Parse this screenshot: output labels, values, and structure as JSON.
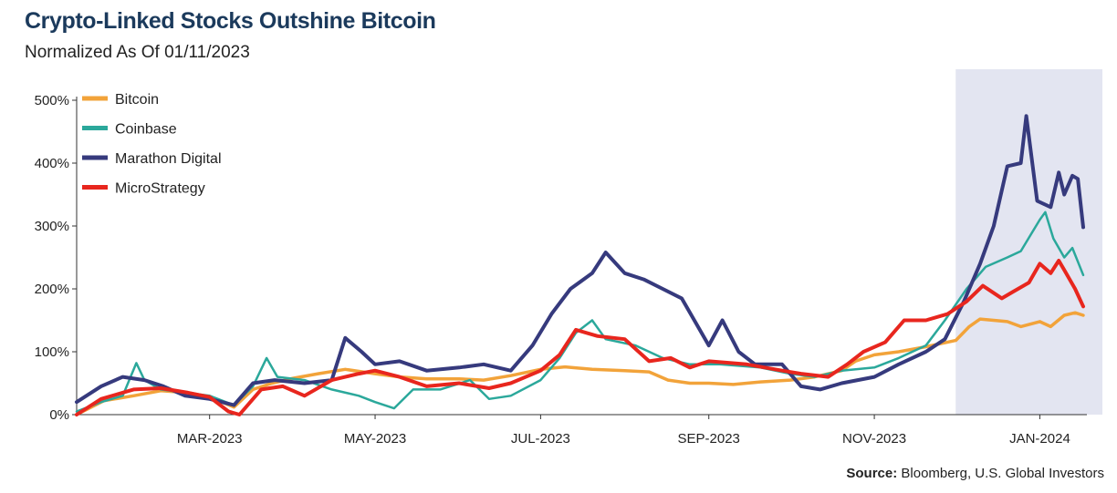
{
  "header": {
    "title": "Crypto-Linked Stocks Outshine Bitcoin",
    "subtitle": "Normalized As Of 01/11/2023"
  },
  "footer": {
    "source_label": "Source:",
    "source_text": " Bloomberg, U.S. Global Investors"
  },
  "chart_data": {
    "type": "line",
    "title": "Crypto-Linked Stocks Outshine Bitcoin",
    "subtitle": "Normalized As Of 01/11/2023",
    "x_tick_labels": [
      "MAR-2023",
      "MAY-2023",
      "JUL-2023",
      "SEP-2023",
      "NOV-2023",
      "JAN-2024"
    ],
    "x_tick_dates": [
      "2023-03-01",
      "2023-05-01",
      "2023-07-01",
      "2023-09-01",
      "2023-11-01",
      "2024-01-01"
    ],
    "x_range": [
      "2023-01-11",
      "2024-01-17"
    ],
    "y_tick_labels": [
      "0%",
      "100%",
      "200%",
      "300%",
      "400%",
      "500%"
    ],
    "y_ticks": [
      0,
      100,
      200,
      300,
      400,
      500
    ],
    "ylim": [
      0,
      500
    ],
    "y_unit": "%",
    "grid": false,
    "legend_position": "top-left",
    "highlight_region": [
      "2023-12-01",
      "2024-01-17"
    ],
    "highlight_color": "#e3e5f1",
    "series": [
      {
        "name": "Bitcoin",
        "color": "#f2a33a",
        "points": [
          [
            "2023-01-11",
            0
          ],
          [
            "2023-01-21",
            22
          ],
          [
            "2023-02-01",
            30
          ],
          [
            "2023-02-11",
            38
          ],
          [
            "2023-02-21",
            35
          ],
          [
            "2023-03-01",
            28
          ],
          [
            "2023-03-10",
            12
          ],
          [
            "2023-03-17",
            40
          ],
          [
            "2023-03-24",
            50
          ],
          [
            "2023-04-01",
            58
          ],
          [
            "2023-04-10",
            65
          ],
          [
            "2023-04-20",
            72
          ],
          [
            "2023-05-01",
            65
          ],
          [
            "2023-05-10",
            60
          ],
          [
            "2023-05-20",
            57
          ],
          [
            "2023-06-01",
            57
          ],
          [
            "2023-06-10",
            55
          ],
          [
            "2023-06-20",
            62
          ],
          [
            "2023-07-01",
            72
          ],
          [
            "2023-07-10",
            76
          ],
          [
            "2023-07-20",
            72
          ],
          [
            "2023-08-01",
            70
          ],
          [
            "2023-08-10",
            68
          ],
          [
            "2023-08-17",
            55
          ],
          [
            "2023-08-25",
            50
          ],
          [
            "2023-09-01",
            50
          ],
          [
            "2023-09-10",
            48
          ],
          [
            "2023-09-20",
            52
          ],
          [
            "2023-10-01",
            55
          ],
          [
            "2023-10-10",
            60
          ],
          [
            "2023-10-20",
            70
          ],
          [
            "2023-10-25",
            85
          ],
          [
            "2023-11-01",
            95
          ],
          [
            "2023-11-10",
            100
          ],
          [
            "2023-11-20",
            108
          ],
          [
            "2023-12-01",
            118
          ],
          [
            "2023-12-06",
            140
          ],
          [
            "2023-12-10",
            152
          ],
          [
            "2023-12-20",
            148
          ],
          [
            "2023-12-25",
            140
          ],
          [
            "2024-01-01",
            148
          ],
          [
            "2024-01-05",
            140
          ],
          [
            "2024-01-10",
            158
          ],
          [
            "2024-01-14",
            162
          ],
          [
            "2024-01-17",
            158
          ]
        ]
      },
      {
        "name": "Coinbase",
        "color": "#2ba89b",
        "points": [
          [
            "2023-01-11",
            5
          ],
          [
            "2023-01-20",
            20
          ],
          [
            "2023-01-28",
            30
          ],
          [
            "2023-02-02",
            82
          ],
          [
            "2023-02-05",
            55
          ],
          [
            "2023-02-11",
            40
          ],
          [
            "2023-02-20",
            35
          ],
          [
            "2023-03-01",
            30
          ],
          [
            "2023-03-10",
            15
          ],
          [
            "2023-03-17",
            45
          ],
          [
            "2023-03-22",
            90
          ],
          [
            "2023-03-26",
            60
          ],
          [
            "2023-04-05",
            55
          ],
          [
            "2023-04-15",
            40
          ],
          [
            "2023-04-25",
            30
          ],
          [
            "2023-05-01",
            20
          ],
          [
            "2023-05-08",
            10
          ],
          [
            "2023-05-15",
            40
          ],
          [
            "2023-05-25",
            40
          ],
          [
            "2023-06-05",
            55
          ],
          [
            "2023-06-12",
            25
          ],
          [
            "2023-06-20",
            30
          ],
          [
            "2023-07-01",
            55
          ],
          [
            "2023-07-08",
            90
          ],
          [
            "2023-07-14",
            130
          ],
          [
            "2023-07-20",
            150
          ],
          [
            "2023-07-25",
            120
          ],
          [
            "2023-08-05",
            110
          ],
          [
            "2023-08-15",
            90
          ],
          [
            "2023-08-25",
            80
          ],
          [
            "2023-09-05",
            80
          ],
          [
            "2023-09-20",
            75
          ],
          [
            "2023-10-01",
            65
          ],
          [
            "2023-10-10",
            60
          ],
          [
            "2023-10-20",
            70
          ],
          [
            "2023-11-01",
            75
          ],
          [
            "2023-11-10",
            90
          ],
          [
            "2023-11-20",
            110
          ],
          [
            "2023-11-27",
            150
          ],
          [
            "2023-12-05",
            200
          ],
          [
            "2023-12-12",
            235
          ],
          [
            "2023-12-20",
            250
          ],
          [
            "2023-12-25",
            260
          ],
          [
            "2024-01-01",
            310
          ],
          [
            "2024-01-03",
            322
          ],
          [
            "2024-01-06",
            280
          ],
          [
            "2024-01-10",
            250
          ],
          [
            "2024-01-13",
            265
          ],
          [
            "2024-01-17",
            222
          ]
        ]
      },
      {
        "name": "Marathon Digital",
        "color": "#363a7d",
        "points": [
          [
            "2023-01-11",
            20
          ],
          [
            "2023-01-20",
            45
          ],
          [
            "2023-01-28",
            60
          ],
          [
            "2023-02-05",
            55
          ],
          [
            "2023-02-12",
            45
          ],
          [
            "2023-02-20",
            30
          ],
          [
            "2023-03-01",
            25
          ],
          [
            "2023-03-10",
            15
          ],
          [
            "2023-03-17",
            50
          ],
          [
            "2023-03-25",
            55
          ],
          [
            "2023-04-05",
            50
          ],
          [
            "2023-04-15",
            55
          ],
          [
            "2023-04-20",
            122
          ],
          [
            "2023-04-26",
            100
          ],
          [
            "2023-05-01",
            80
          ],
          [
            "2023-05-10",
            85
          ],
          [
            "2023-05-20",
            70
          ],
          [
            "2023-06-01",
            75
          ],
          [
            "2023-06-10",
            80
          ],
          [
            "2023-06-20",
            70
          ],
          [
            "2023-06-28",
            110
          ],
          [
            "2023-07-05",
            160
          ],
          [
            "2023-07-12",
            200
          ],
          [
            "2023-07-20",
            225
          ],
          [
            "2023-07-25",
            258
          ],
          [
            "2023-08-01",
            225
          ],
          [
            "2023-08-08",
            215
          ],
          [
            "2023-08-15",
            200
          ],
          [
            "2023-08-22",
            185
          ],
          [
            "2023-09-01",
            110
          ],
          [
            "2023-09-06",
            150
          ],
          [
            "2023-09-12",
            100
          ],
          [
            "2023-09-18",
            80
          ],
          [
            "2023-09-28",
            80
          ],
          [
            "2023-10-05",
            45
          ],
          [
            "2023-10-12",
            40
          ],
          [
            "2023-10-20",
            50
          ],
          [
            "2023-11-01",
            60
          ],
          [
            "2023-11-10",
            80
          ],
          [
            "2023-11-20",
            100
          ],
          [
            "2023-11-27",
            120
          ],
          [
            "2023-12-04",
            180
          ],
          [
            "2023-12-10",
            240
          ],
          [
            "2023-12-15",
            300
          ],
          [
            "2023-12-20",
            395
          ],
          [
            "2023-12-25",
            400
          ],
          [
            "2023-12-27",
            475
          ],
          [
            "2023-12-31",
            340
          ],
          [
            "2024-01-05",
            330
          ],
          [
            "2024-01-08",
            385
          ],
          [
            "2024-01-10",
            350
          ],
          [
            "2024-01-13",
            380
          ],
          [
            "2024-01-15",
            375
          ],
          [
            "2024-01-17",
            298
          ]
        ]
      },
      {
        "name": "MicroStrategy",
        "color": "#e8261e",
        "points": [
          [
            "2023-01-11",
            0
          ],
          [
            "2023-01-20",
            25
          ],
          [
            "2023-02-01",
            40
          ],
          [
            "2023-02-11",
            42
          ],
          [
            "2023-02-21",
            35
          ],
          [
            "2023-03-01",
            28
          ],
          [
            "2023-03-08",
            5
          ],
          [
            "2023-03-12",
            0
          ],
          [
            "2023-03-20",
            40
          ],
          [
            "2023-03-28",
            45
          ],
          [
            "2023-04-05",
            30
          ],
          [
            "2023-04-15",
            55
          ],
          [
            "2023-04-25",
            65
          ],
          [
            "2023-05-01",
            70
          ],
          [
            "2023-05-10",
            60
          ],
          [
            "2023-05-20",
            45
          ],
          [
            "2023-06-01",
            50
          ],
          [
            "2023-06-12",
            42
          ],
          [
            "2023-06-20",
            50
          ],
          [
            "2023-07-01",
            70
          ],
          [
            "2023-07-08",
            95
          ],
          [
            "2023-07-14",
            135
          ],
          [
            "2023-07-22",
            125
          ],
          [
            "2023-08-01",
            120
          ],
          [
            "2023-08-10",
            85
          ],
          [
            "2023-08-18",
            90
          ],
          [
            "2023-08-25",
            75
          ],
          [
            "2023-09-01",
            85
          ],
          [
            "2023-09-15",
            80
          ],
          [
            "2023-09-28",
            70
          ],
          [
            "2023-10-05",
            65
          ],
          [
            "2023-10-15",
            60
          ],
          [
            "2023-10-22",
            80
          ],
          [
            "2023-10-28",
            100
          ],
          [
            "2023-11-05",
            115
          ],
          [
            "2023-11-12",
            150
          ],
          [
            "2023-11-20",
            150
          ],
          [
            "2023-11-28",
            160
          ],
          [
            "2023-12-05",
            180
          ],
          [
            "2023-12-11",
            205
          ],
          [
            "2023-12-18",
            185
          ],
          [
            "2023-12-22",
            195
          ],
          [
            "2023-12-28",
            210
          ],
          [
            "2024-01-01",
            240
          ],
          [
            "2024-01-05",
            225
          ],
          [
            "2024-01-08",
            245
          ],
          [
            "2024-01-10",
            230
          ],
          [
            "2024-01-14",
            200
          ],
          [
            "2024-01-17",
            172
          ]
        ]
      }
    ]
  }
}
